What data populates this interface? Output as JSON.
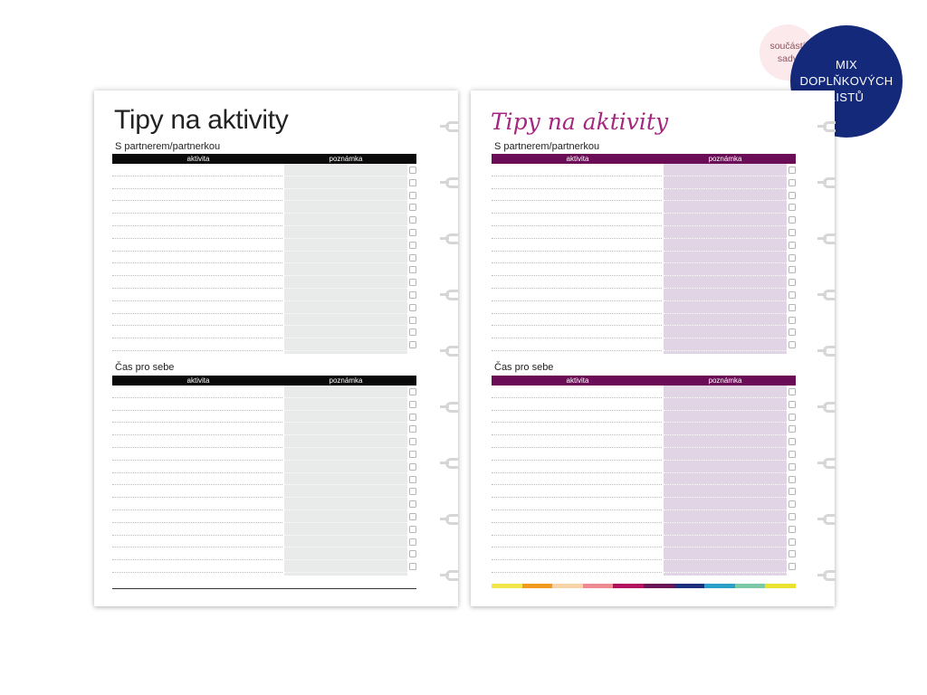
{
  "badges": {
    "small": [
      "součástí",
      "sady"
    ],
    "large": [
      "MIX",
      "DOPLŇKOVÝCH",
      "LISTŮ"
    ]
  },
  "pages": [
    {
      "id": "left",
      "title": "Tipy na aktivity",
      "theme": {
        "header": "#0a0a0a",
        "note_fill": "#e9eaea",
        "title_color": "#222222"
      },
      "sections": [
        {
          "label": "S partnerem/partnerkou",
          "col_activity": "aktivita",
          "col_note": "poznámka",
          "rows": 15
        },
        {
          "label": "Čas pro sebe",
          "col_activity": "aktivita",
          "col_note": "poznámka",
          "rows": 15
        }
      ]
    },
    {
      "id": "right",
      "title": "Tipy na aktivity",
      "theme": {
        "header": "#6b0c56",
        "note_fill": "#e1d4e5",
        "title_color": "#a4277f"
      },
      "sections": [
        {
          "label": "S partnerem/partnerkou",
          "col_activity": "aktivita",
          "col_note": "poznámka",
          "rows": 15
        },
        {
          "label": "Čas pro sebe",
          "col_activity": "aktivita",
          "col_note": "poznámka",
          "rows": 15
        }
      ],
      "color_strip": [
        "#f3e64a",
        "#f19a1d",
        "#f7d3a9",
        "#f08a92",
        "#b3135e",
        "#6a1555",
        "#1d2e7e",
        "#2aa0c9",
        "#7cc9a7",
        "#e9e32f"
      ]
    }
  ]
}
